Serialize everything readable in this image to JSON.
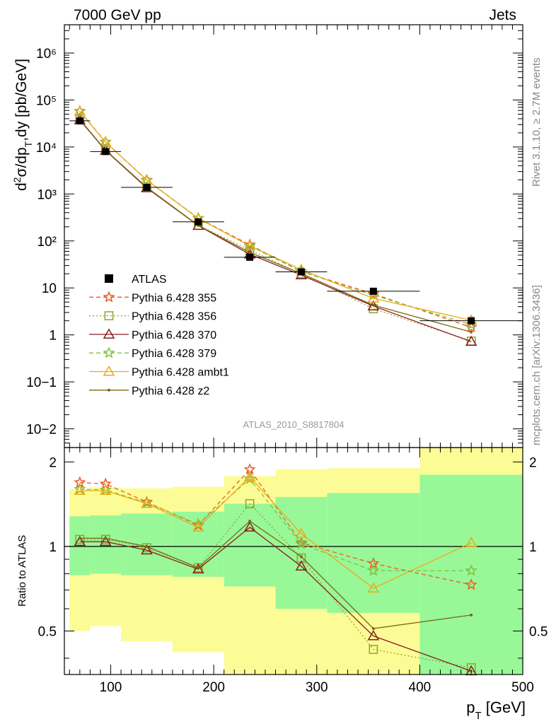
{
  "header": {
    "left": "7000 GeV pp",
    "right": "Jets",
    "side_top": "Rivet 3.1.10, ≥ 2.7M events",
    "side_bottom": "mcplots.cern.ch [arXiv:1306.3436]",
    "analysis": "ATLAS_2010_S8817804"
  },
  "chart_data": [
    {
      "type": "scatter",
      "panel": "main",
      "ylabel": "d²σ/dp_T,dy [pb/GeV]",
      "xlim": [
        55,
        500
      ],
      "ylim": [
        0.004,
        4000000
      ],
      "yscale": "log",
      "ytick_labels": [
        "10−2",
        "10−1",
        "1",
        "10",
        "10²",
        "10³",
        "10⁴",
        "10⁵",
        "10⁶"
      ],
      "legend_position": "middle-left",
      "reference": {
        "name": "ATLAS",
        "x": [
          70,
          95,
          135,
          185,
          235,
          285,
          355,
          450
        ],
        "y": [
          36000,
          8000,
          1380,
          255,
          45,
          22,
          8.5,
          2.0
        ],
        "xerr": [
          10,
          15,
          25,
          25,
          25,
          25,
          45,
          50
        ]
      },
      "x": [
        70,
        95,
        135,
        185,
        235,
        285,
        355,
        450
      ],
      "series": [
        {
          "name": "Pythia 6.428 355",
          "color": "#ee5a24",
          "marker": "star",
          "dash": "6,4",
          "values": [
            58000,
            12800,
            1960,
            305,
            83,
            22.5,
            7.5,
            1.45
          ]
        },
        {
          "name": "Pythia 6.428 356",
          "color": "#8fa526",
          "marker": "square",
          "dash": "2,3",
          "values": [
            38000,
            8500,
            1370,
            215,
            64,
            20,
            3.6,
            0.74
          ]
        },
        {
          "name": "Pythia 6.428 370",
          "color": "#8b1c1c",
          "marker": "triangle",
          "dash": "",
          "values": [
            37500,
            8400,
            1340,
            212,
            52,
            18.8,
            4.1,
            0.72
          ]
        },
        {
          "name": "Pythia 6.428 379",
          "color": "#7ec242",
          "marker": "star",
          "dash": "6,4",
          "values": [
            57500,
            12700,
            1990,
            305,
            78,
            22.3,
            7.0,
            1.65
          ]
        },
        {
          "name": "Pythia 6.428 ambt1",
          "color": "#f0a818",
          "marker": "triangle",
          "dash": "",
          "values": [
            57000,
            12600,
            1975,
            300,
            79,
            24.5,
            6.0,
            2.05
          ]
        },
        {
          "name": "Pythia 6.428 z2",
          "color": "#7a6a14",
          "marker": "dot",
          "dash": "",
          "values": [
            38500,
            8550,
            1385,
            214,
            57,
            20.3,
            4.3,
            1.15
          ]
        }
      ]
    },
    {
      "type": "line",
      "panel": "ratio",
      "xlabel": "p_T [GeV]",
      "ylabel": "Ratio to ATLAS",
      "xlim": [
        55,
        500
      ],
      "ylim": [
        0.35,
        2.25
      ],
      "xtick_labels": [
        "100",
        "200",
        "300",
        "400",
        "500"
      ],
      "ytick_labels": [
        "0.5",
        "1",
        "2"
      ],
      "bands": {
        "edges": [
          60,
          80,
          110,
          160,
          210,
          260,
          310,
          400,
          500
        ],
        "inner": [
          [
            0.79,
            1.28
          ],
          [
            0.8,
            1.29
          ],
          [
            0.79,
            1.31
          ],
          [
            0.78,
            1.33
          ],
          [
            0.72,
            1.42
          ],
          [
            0.6,
            1.5
          ],
          [
            0.58,
            1.55
          ],
          [
            0.35,
            1.8
          ]
        ],
        "outer": [
          [
            0.5,
            1.6
          ],
          [
            0.52,
            1.62
          ],
          [
            0.46,
            1.61
          ],
          [
            0.42,
            1.63
          ],
          [
            0.33,
            1.78
          ],
          [
            0.33,
            1.88
          ],
          [
            0.33,
            1.9
          ],
          [
            0.33,
            2.3
          ]
        ],
        "inner_color": "#98f898",
        "outer_color": "#fcfc96"
      },
      "x": [
        70,
        95,
        135,
        185,
        235,
        285,
        355,
        450
      ],
      "series": [
        {
          "name": "Pythia 6.428 355",
          "values": [
            1.69,
            1.67,
            1.44,
            1.19,
            1.88,
            1.03,
            0.87,
            0.73
          ]
        },
        {
          "name": "Pythia 6.428 356",
          "values": [
            1.06,
            1.06,
            0.99,
            0.84,
            1.42,
            0.91,
            0.43,
            0.37
          ]
        },
        {
          "name": "Pythia 6.428 370",
          "values": [
            1.04,
            1.04,
            0.97,
            0.83,
            1.17,
            0.85,
            0.48,
            0.36
          ]
        },
        {
          "name": "Pythia 6.428 379",
          "values": [
            1.6,
            1.59,
            1.43,
            1.2,
            1.74,
            1.02,
            0.82,
            0.82
          ]
        },
        {
          "name": "Pythia 6.428 ambt1",
          "values": [
            1.58,
            1.58,
            1.42,
            1.17,
            1.77,
            1.11,
            0.71,
            1.03
          ]
        },
        {
          "name": "Pythia 6.428 z2",
          "values": [
            1.07,
            1.07,
            1.0,
            0.84,
            1.23,
            0.92,
            0.51,
            0.57
          ]
        }
      ]
    }
  ]
}
